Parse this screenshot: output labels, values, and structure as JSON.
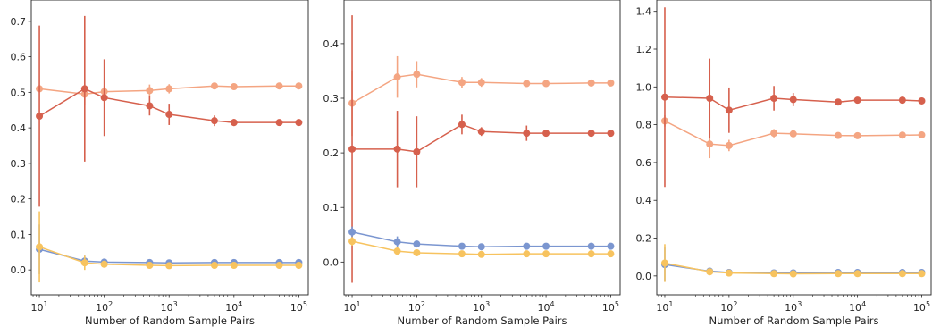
{
  "chart_data": [
    {
      "type": "line",
      "xscale": "log",
      "xlabel": "Number of Random Sample Pairs",
      "ylabel": "",
      "xlim": [
        7.5,
        140000
      ],
      "ylim": [
        -0.07,
        0.76
      ],
      "yticks": [
        0.0,
        0.1,
        0.2,
        0.3,
        0.4,
        0.5,
        0.6,
        0.7
      ],
      "ytick_labels": [
        "0.0",
        "0.1",
        "0.2",
        "0.3",
        "0.4",
        "0.5",
        "0.6",
        "0.7"
      ],
      "xticks": [
        10,
        100,
        1000,
        10000,
        100000
      ],
      "xtick_labels": [
        [
          "10",
          "1"
        ],
        [
          "10",
          "2"
        ],
        [
          "10",
          "3"
        ],
        [
          "10",
          "4"
        ],
        [
          "10",
          "5"
        ]
      ],
      "x": [
        10,
        50,
        100,
        500,
        1000,
        5000,
        10000,
        50000,
        100000
      ],
      "series": [
        {
          "color": "#f4a582",
          "values": [
            0.51,
            0.495,
            0.502,
            0.505,
            0.51,
            0.518,
            0.516,
            0.518,
            0.518
          ],
          "errors": [
            0.0,
            0.03,
            0.015,
            0.017,
            0.013,
            0.006,
            0.005,
            0.004,
            0.003
          ]
        },
        {
          "color": "#d6604d",
          "values": [
            0.433,
            0.51,
            0.485,
            0.462,
            0.438,
            0.42,
            0.415,
            0.415,
            0.415
          ],
          "errors": [
            0.255,
            0.205,
            0.108,
            0.027,
            0.03,
            0.015,
            0.01,
            0.004,
            0.004
          ]
        },
        {
          "color": "#7b96d0",
          "values": [
            0.058,
            0.025,
            0.022,
            0.021,
            0.02,
            0.021,
            0.021,
            0.021,
            0.021
          ],
          "errors": [
            0.07,
            0.015,
            0.005,
            0.003,
            0.003,
            0.002,
            0.002,
            0.001,
            0.001
          ]
        },
        {
          "color": "#f7c35f",
          "values": [
            0.065,
            0.02,
            0.016,
            0.013,
            0.012,
            0.013,
            0.013,
            0.013,
            0.013
          ],
          "errors": [
            0.1,
            0.02,
            0.005,
            0.004,
            0.003,
            0.002,
            0.002,
            0.001,
            0.001
          ]
        }
      ]
    },
    {
      "type": "line",
      "xscale": "log",
      "xlabel": "Number of Random Sample Pairs",
      "ylabel": "",
      "xlim": [
        7.5,
        140000
      ],
      "ylim": [
        -0.06,
        0.48
      ],
      "yticks": [
        0.0,
        0.1,
        0.2,
        0.3,
        0.4
      ],
      "ytick_labels": [
        "0.0",
        "0.1",
        "0.2",
        "0.3",
        "0.4"
      ],
      "xticks": [
        10,
        100,
        1000,
        10000,
        100000
      ],
      "xtick_labels": [
        [
          "10",
          "1"
        ],
        [
          "10",
          "2"
        ],
        [
          "10",
          "3"
        ],
        [
          "10",
          "4"
        ],
        [
          "10",
          "5"
        ]
      ],
      "x": [
        10,
        50,
        100,
        500,
        1000,
        5000,
        10000,
        50000,
        100000
      ],
      "series": [
        {
          "color": "#f4a582",
          "values": [
            0.291,
            0.339,
            0.344,
            0.329,
            0.329,
            0.327,
            0.327,
            0.328,
            0.328
          ],
          "errors": [
            0.06,
            0.038,
            0.024,
            0.01,
            0.008,
            0.003,
            0.002,
            0.002,
            0.002
          ]
        },
        {
          "color": "#d6604d",
          "values": [
            0.207,
            0.207,
            0.202,
            0.252,
            0.239,
            0.236,
            0.236,
            0.236,
            0.236
          ],
          "errors": [
            0.245,
            0.07,
            0.065,
            0.018,
            0.008,
            0.014,
            0.004,
            0.002,
            0.002
          ]
        },
        {
          "color": "#7b96d0",
          "values": [
            0.055,
            0.037,
            0.033,
            0.029,
            0.028,
            0.029,
            0.029,
            0.029,
            0.029
          ],
          "errors": [
            0.01,
            0.01,
            0.004,
            0.003,
            0.002,
            0.001,
            0.001,
            0.001,
            0.001
          ]
        },
        {
          "color": "#f7c35f",
          "values": [
            0.038,
            0.02,
            0.017,
            0.015,
            0.014,
            0.015,
            0.015,
            0.015,
            0.015
          ],
          "errors": [
            0.008,
            0.008,
            0.003,
            0.002,
            0.002,
            0.001,
            0.001,
            0.001,
            0.001
          ]
        }
      ]
    },
    {
      "type": "line",
      "xscale": "log",
      "xlabel": "Number of Random Sample Pairs",
      "ylabel": "",
      "xlim": [
        7.5,
        140000
      ],
      "ylim": [
        -0.1,
        1.46
      ],
      "yticks": [
        0.0,
        0.2,
        0.4,
        0.6,
        0.8,
        1.0,
        1.2,
        1.4
      ],
      "ytick_labels": [
        "0.0",
        "0.2",
        "0.4",
        "0.6",
        "0.8",
        "1.0",
        "1.2",
        "1.4"
      ],
      "xticks": [
        10,
        100,
        1000,
        10000,
        100000
      ],
      "xtick_labels": [
        [
          "10",
          "1"
        ],
        [
          "10",
          "2"
        ],
        [
          "10",
          "3"
        ],
        [
          "10",
          "4"
        ],
        [
          "10",
          "5"
        ]
      ],
      "x": [
        10,
        50,
        100,
        500,
        1000,
        5000,
        10000,
        50000,
        100000
      ],
      "series": [
        {
          "color": "#f4a582",
          "values": [
            0.82,
            0.698,
            0.69,
            0.755,
            0.752,
            0.743,
            0.742,
            0.745,
            0.746
          ],
          "errors": [
            0.03,
            0.075,
            0.03,
            0.022,
            0.015,
            0.01,
            0.006,
            0.005,
            0.005
          ]
        },
        {
          "color": "#d6604d",
          "values": [
            0.946,
            0.94,
            0.877,
            0.94,
            0.933,
            0.92,
            0.93,
            0.93,
            0.926
          ],
          "errors": [
            0.475,
            0.21,
            0.12,
            0.065,
            0.035,
            0.01,
            0.01,
            0.006,
            0.006
          ]
        },
        {
          "color": "#7b96d0",
          "values": [
            0.06,
            0.025,
            0.018,
            0.016,
            0.016,
            0.018,
            0.018,
            0.018,
            0.018
          ],
          "errors": [
            0.09,
            0.01,
            0.005,
            0.003,
            0.003,
            0.002,
            0.002,
            0.001,
            0.001
          ]
        },
        {
          "color": "#f7c35f",
          "values": [
            0.068,
            0.022,
            0.015,
            0.012,
            0.011,
            0.012,
            0.012,
            0.012,
            0.012
          ],
          "errors": [
            0.1,
            0.01,
            0.005,
            0.003,
            0.003,
            0.002,
            0.002,
            0.001,
            0.001
          ]
        }
      ]
    }
  ]
}
